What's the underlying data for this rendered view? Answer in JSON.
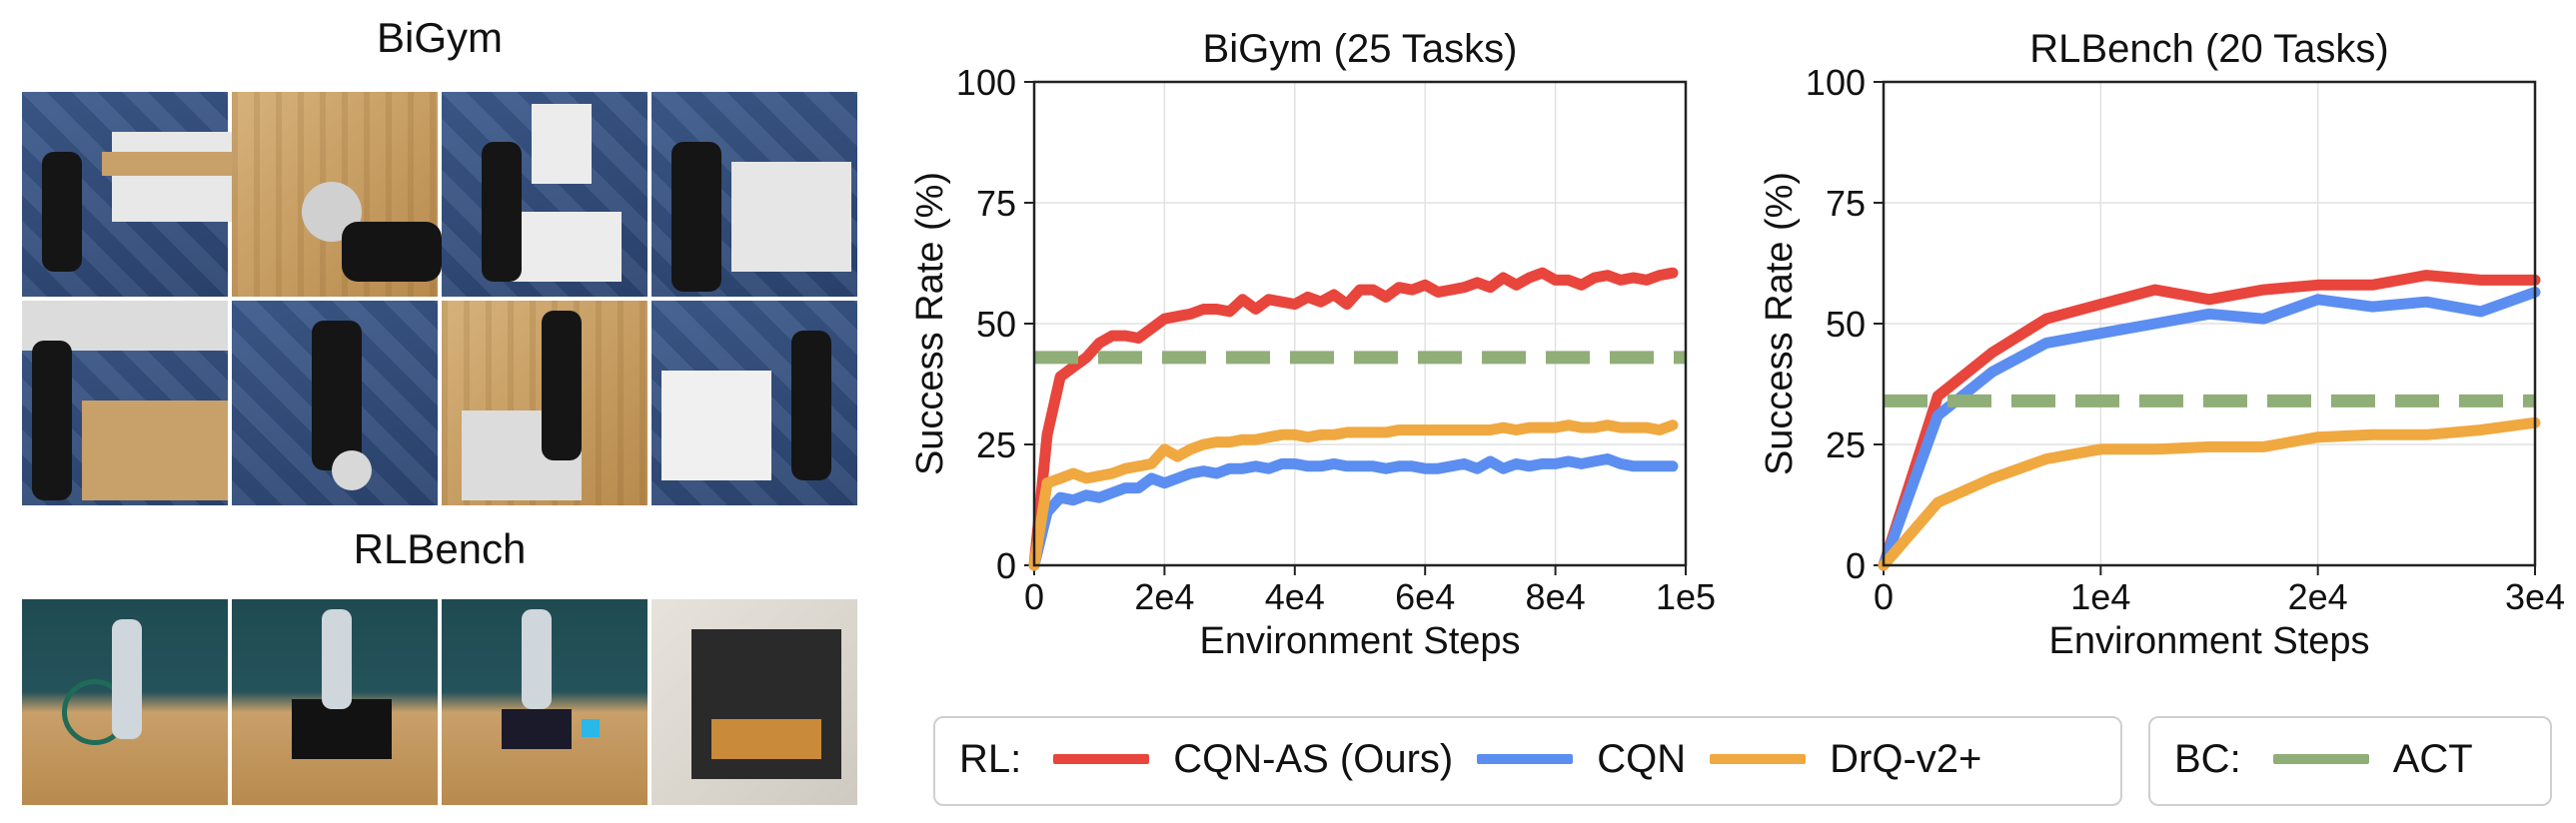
{
  "images": {
    "bigym_title": "BiGym",
    "rlbench_title": "RLBench"
  },
  "legend": {
    "rl_label": "RL:",
    "bc_label": "BC:",
    "entries": [
      {
        "name": "CQN-AS (Ours)",
        "color": "#e8453c"
      },
      {
        "name": "CQN",
        "color": "#5b8ef0"
      },
      {
        "name": "DrQ-v2+",
        "color": "#f0a840"
      },
      {
        "name": "ACT",
        "color": "#8fae78"
      }
    ]
  },
  "chart_data": [
    {
      "type": "line",
      "title": "BiGym (25 Tasks)",
      "xlabel": "Environment Steps",
      "ylabel": "Success Rate (%)",
      "xlim": [
        0,
        100000
      ],
      "ylim": [
        0,
        100
      ],
      "xticks": [
        0,
        20000,
        40000,
        60000,
        80000,
        100000
      ],
      "xtick_labels": [
        "0",
        "2e4",
        "4e4",
        "6e4",
        "8e4",
        "1e5"
      ],
      "yticks": [
        0,
        25,
        50,
        75,
        100
      ],
      "ytick_labels": [
        "0",
        "25",
        "50",
        "75",
        "100"
      ],
      "grid": true,
      "series": [
        {
          "name": "CQN-AS (Ours)",
          "color": "#e8453c",
          "x": [
            0,
            2000,
            4000,
            6000,
            8000,
            10000,
            12000,
            14000,
            16000,
            18000,
            20000,
            22000,
            24000,
            26000,
            28000,
            30000,
            32000,
            34000,
            36000,
            38000,
            40000,
            42000,
            44000,
            46000,
            48000,
            50000,
            52000,
            54000,
            56000,
            58000,
            60000,
            62000,
            64000,
            66000,
            68000,
            70000,
            72000,
            74000,
            76000,
            78000,
            80000,
            82000,
            84000,
            86000,
            88000,
            90000,
            92000,
            94000,
            96000,
            98000
          ],
          "y": [
            0,
            27,
            39,
            41,
            43,
            46,
            47.5,
            47.5,
            47,
            49,
            51,
            51.5,
            52,
            53,
            53,
            52.5,
            55,
            53,
            55,
            54.5,
            54,
            55.5,
            54.5,
            56,
            54,
            57,
            57,
            55.5,
            57.5,
            57,
            58,
            56.5,
            57,
            57.5,
            58.5,
            57.5,
            59.5,
            58,
            59.5,
            60.5,
            59,
            59,
            58,
            59.5,
            60,
            59,
            59.5,
            59,
            60,
            60.5
          ]
        },
        {
          "name": "CQN",
          "color": "#5b8ef0",
          "x": [
            0,
            2000,
            4000,
            6000,
            8000,
            10000,
            12000,
            14000,
            16000,
            18000,
            20000,
            22000,
            24000,
            26000,
            28000,
            30000,
            32000,
            34000,
            36000,
            38000,
            40000,
            42000,
            44000,
            46000,
            48000,
            50000,
            52000,
            54000,
            56000,
            58000,
            60000,
            62000,
            64000,
            66000,
            68000,
            70000,
            72000,
            74000,
            76000,
            78000,
            80000,
            82000,
            84000,
            86000,
            88000,
            90000,
            92000,
            94000,
            96000,
            98000
          ],
          "y": [
            0,
            11,
            14,
            13.5,
            14.5,
            14,
            15,
            16,
            16,
            18,
            17,
            18,
            19,
            19.5,
            19,
            20,
            20,
            20.5,
            20,
            21,
            21,
            20.5,
            20.5,
            21,
            20.5,
            20.5,
            20.5,
            20,
            20.5,
            20.5,
            20,
            20,
            20.5,
            21,
            20,
            21.5,
            20,
            21,
            20.5,
            21,
            21,
            21.5,
            21,
            21.5,
            22,
            21,
            20.5,
            20.5,
            20.5,
            20.5
          ]
        },
        {
          "name": "DrQ-v2+",
          "color": "#f0a840",
          "x": [
            0,
            2000,
            4000,
            6000,
            8000,
            10000,
            12000,
            14000,
            16000,
            18000,
            20000,
            22000,
            24000,
            26000,
            28000,
            30000,
            32000,
            34000,
            36000,
            38000,
            40000,
            42000,
            44000,
            46000,
            48000,
            50000,
            52000,
            54000,
            56000,
            58000,
            60000,
            62000,
            64000,
            66000,
            68000,
            70000,
            72000,
            74000,
            76000,
            78000,
            80000,
            82000,
            84000,
            86000,
            88000,
            90000,
            92000,
            94000,
            96000,
            98000
          ],
          "y": [
            0,
            17,
            18,
            19,
            18,
            18.5,
            19,
            20,
            20.5,
            21,
            24,
            22.5,
            24,
            25,
            25.5,
            25.5,
            26,
            26,
            26.5,
            27,
            27,
            26.5,
            27,
            27,
            27.5,
            27.5,
            27.5,
            27.5,
            28,
            28,
            28,
            28,
            28,
            28,
            28,
            28,
            28.5,
            28,
            28.5,
            28.5,
            28.5,
            29,
            28.5,
            28.5,
            29,
            28.5,
            28.5,
            28.5,
            28,
            29
          ]
        },
        {
          "name": "ACT",
          "color": "#8fae78",
          "dashed": true,
          "x": [
            0,
            100000
          ],
          "y": [
            43,
            43
          ]
        }
      ]
    },
    {
      "type": "line",
      "title": "RLBench (20 Tasks)",
      "xlabel": "Environment Steps",
      "ylabel": "Success Rate (%)",
      "xlim": [
        0,
        30000
      ],
      "ylim": [
        0,
        100
      ],
      "xticks": [
        0,
        10000,
        20000,
        30000
      ],
      "xtick_labels": [
        "0",
        "1e4",
        "2e4",
        "3e4"
      ],
      "yticks": [
        0,
        25,
        50,
        75,
        100
      ],
      "ytick_labels": [
        "0",
        "25",
        "50",
        "75",
        "100"
      ],
      "grid": true,
      "series": [
        {
          "name": "CQN-AS (Ours)",
          "color": "#e8453c",
          "x": [
            0,
            2500,
            5000,
            7500,
            10000,
            12500,
            15000,
            17500,
            20000,
            22500,
            25000,
            27500,
            30000
          ],
          "y": [
            0,
            35,
            44,
            51,
            54,
            57,
            55,
            57,
            58,
            58,
            60,
            59,
            59
          ]
        },
        {
          "name": "CQN",
          "color": "#5b8ef0",
          "x": [
            0,
            2500,
            5000,
            7500,
            10000,
            12500,
            15000,
            17500,
            20000,
            22500,
            25000,
            27500,
            30000
          ],
          "y": [
            0,
            31,
            40,
            46,
            48,
            50,
            52,
            51,
            55,
            53.5,
            54.5,
            52.5,
            56.5
          ]
        },
        {
          "name": "DrQ-v2+",
          "color": "#f0a840",
          "x": [
            0,
            2500,
            5000,
            7500,
            10000,
            12500,
            15000,
            17500,
            20000,
            22500,
            25000,
            27500,
            30000
          ],
          "y": [
            0,
            13,
            18,
            22,
            24,
            24,
            24.5,
            24.5,
            26.5,
            27,
            27,
            28,
            29.5
          ]
        },
        {
          "name": "ACT",
          "color": "#8fae78",
          "dashed": true,
          "x": [
            0,
            30000
          ],
          "y": [
            34,
            34
          ]
        }
      ]
    }
  ]
}
